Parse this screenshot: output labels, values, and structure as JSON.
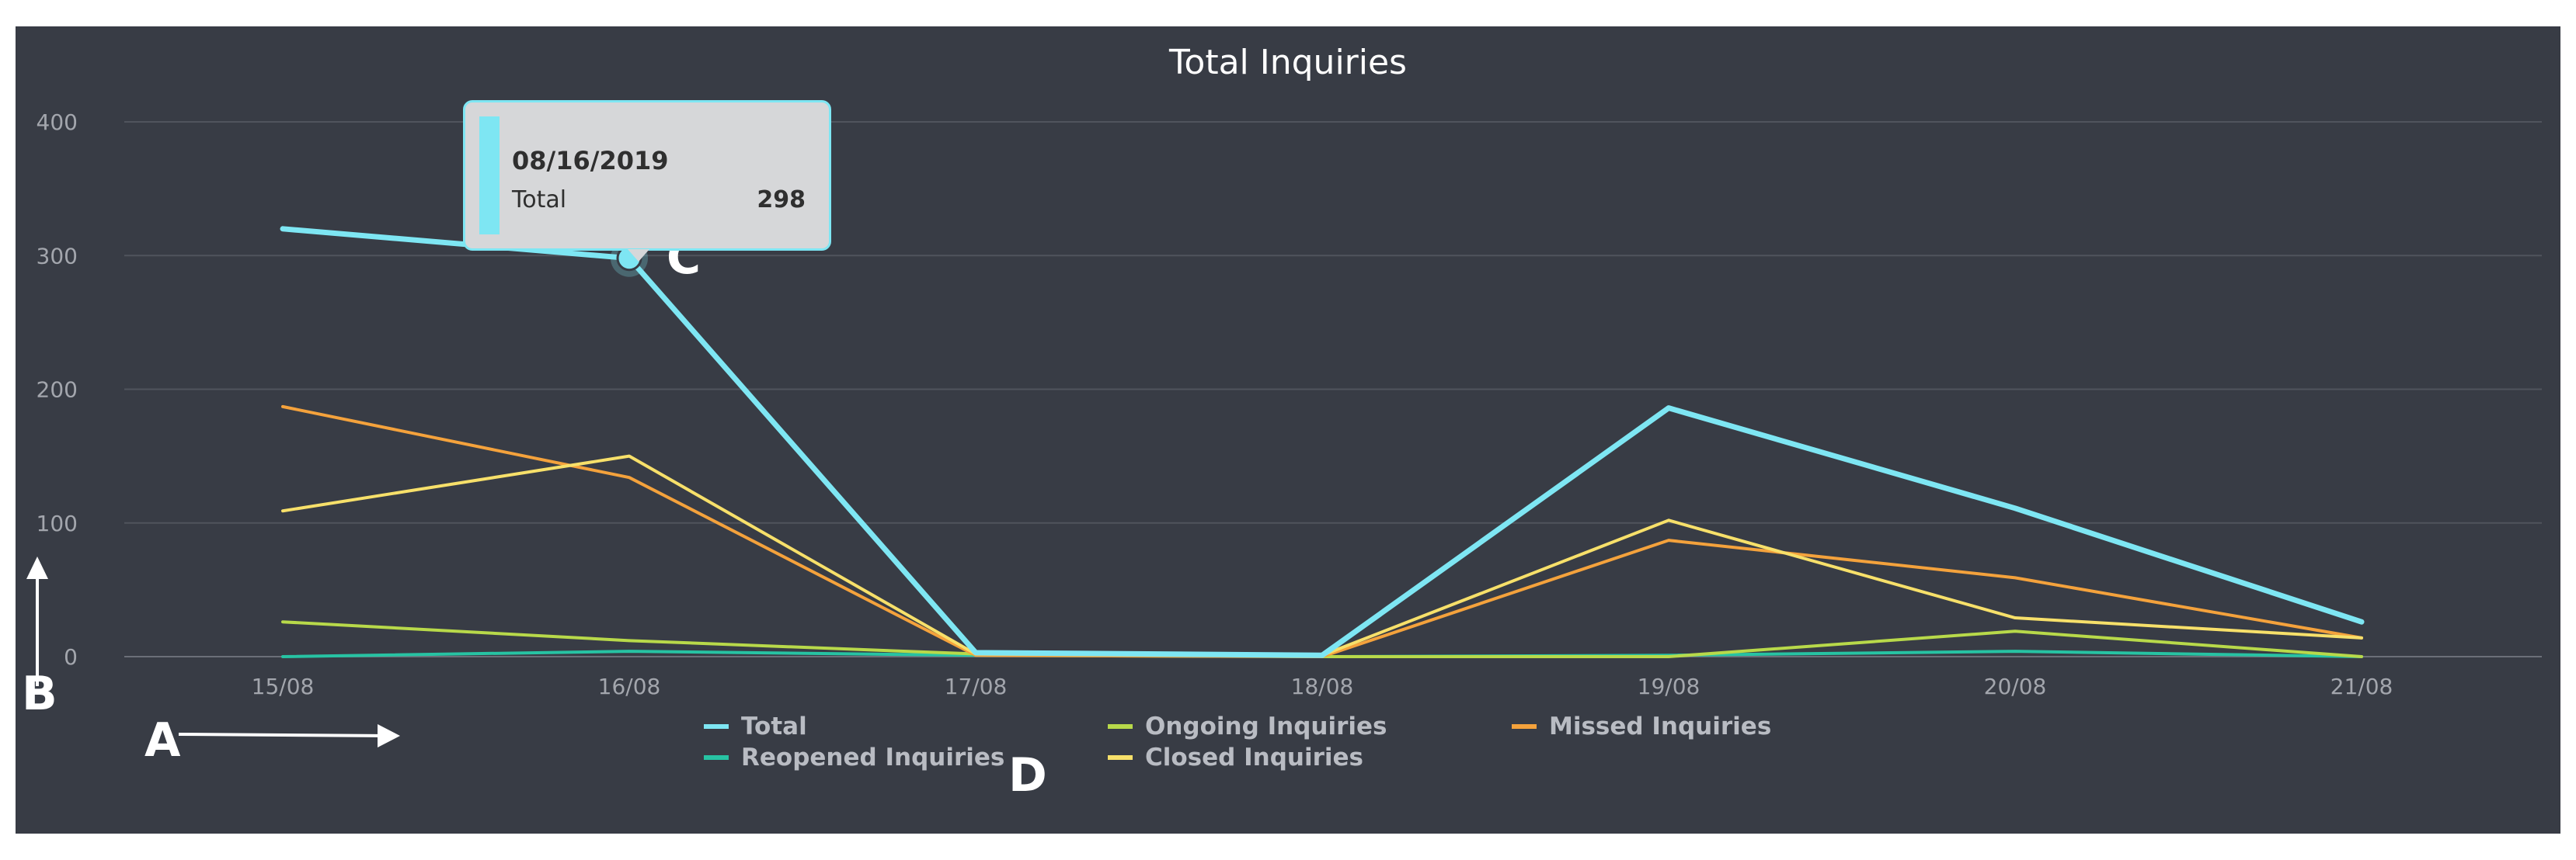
{
  "chart_data": {
    "type": "line",
    "title": "Total Inquiries",
    "categories": [
      "15/08",
      "16/08",
      "17/08",
      "18/08",
      "19/08",
      "20/08",
      "21/08"
    ],
    "ylim": [
      0,
      400
    ],
    "yticks": [
      0,
      100,
      200,
      300,
      400
    ],
    "grid": true,
    "legend_position": "bottom",
    "series": [
      {
        "name": "Total",
        "color": "#7ee6f3",
        "values": [
          320,
          298,
          3,
          1,
          186,
          111,
          26
        ]
      },
      {
        "name": "Ongoing Inquiries",
        "color": "#b8d94a",
        "values": [
          26,
          12,
          2,
          0,
          0,
          19,
          0
        ]
      },
      {
        "name": "Missed Inquiries",
        "color": "#f4a23c",
        "values": [
          187,
          134,
          1,
          0,
          87,
          59,
          14
        ]
      },
      {
        "name": "Reopened Inquiries",
        "color": "#27c3a3",
        "values": [
          0,
          4,
          1,
          0,
          1,
          4,
          0
        ]
      },
      {
        "name": "Closed Inquiries",
        "color": "#f7e06a",
        "values": [
          109,
          150,
          2,
          1,
          102,
          29,
          14
        ]
      }
    ],
    "tooltip": {
      "date": "08/16/2019",
      "series": "Total",
      "value": "298",
      "category_index": 1
    }
  },
  "annotations": {
    "a": "A",
    "b": "B",
    "c": "C",
    "d": "D"
  }
}
